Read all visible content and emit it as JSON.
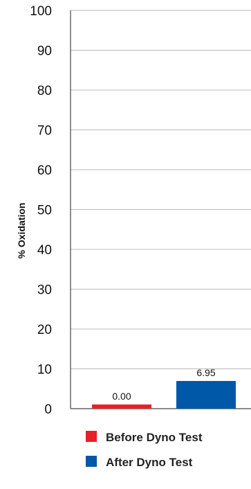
{
  "chart_data": {
    "type": "bar",
    "ylabel": "% Oxidation",
    "ylim": [
      0,
      100
    ],
    "yticks": [
      0,
      10,
      20,
      30,
      40,
      50,
      60,
      70,
      80,
      90,
      100
    ],
    "grid": true,
    "legend_position": "bottom",
    "series": [
      {
        "name": "Before Dyno Test",
        "value": 0,
        "label": "0.00",
        "color": "#e8202a"
      },
      {
        "name": "After Dyno Test",
        "value": 6.95,
        "label": "6.95",
        "color": "#0058a8"
      }
    ]
  }
}
